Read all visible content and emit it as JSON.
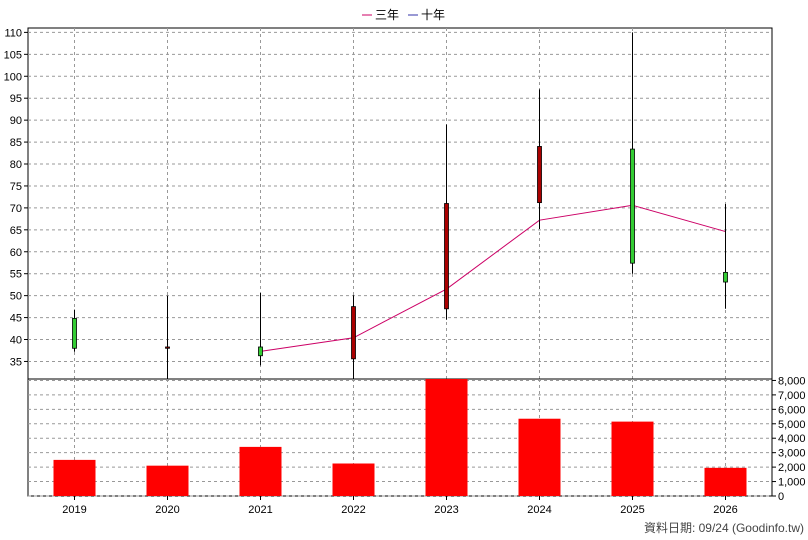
{
  "chart_data": [
    {
      "type": "candlestick",
      "legend": [
        {
          "name": "三年",
          "color": "#cc0066"
        },
        {
          "name": "十年",
          "color": "#3333aa"
        }
      ],
      "x": [
        "2019",
        "2020",
        "2021",
        "2022",
        "2023",
        "2024",
        "2025",
        "2026"
      ],
      "ylim": [
        31,
        111
      ],
      "yticks": [
        35,
        40,
        45,
        50,
        55,
        60,
        65,
        70,
        75,
        80,
        85,
        90,
        95,
        100,
        105,
        110
      ],
      "candles": [
        {
          "open": 38,
          "close": 44.8,
          "high": 46.8,
          "low": 37.2
        },
        {
          "open": 38.3,
          "close": 38.0,
          "high": 50,
          "low": 30.9
        },
        {
          "open": 36.3,
          "close": 38.3,
          "high": 50.6,
          "low": 34.1
        },
        {
          "open": 47.5,
          "close": 35.6,
          "high": 50.1,
          "low": 30.8
        },
        {
          "open": 71,
          "close": 47,
          "high": 89,
          "low": 44.5
        },
        {
          "open": 84,
          "close": 71.2,
          "high": 97,
          "low": 65.2
        },
        {
          "open": 57.4,
          "close": 83.4,
          "high": 110,
          "low": 55
        },
        {
          "open": 53.1,
          "close": 55.3,
          "high": 70.9,
          "low": 47
        }
      ],
      "series": [
        {
          "name": "三年",
          "x": [
            "2021",
            "2022",
            "2023",
            "2024",
            "2025",
            "2026"
          ],
          "values": [
            37.3,
            40.4,
            51.5,
            67.2,
            70.6,
            64.6
          ]
        }
      ],
      "grid": true
    },
    {
      "type": "bar",
      "categories": [
        "2019",
        "2020",
        "2021",
        "2022",
        "2023",
        "2024",
        "2025",
        "2026"
      ],
      "values": [
        2500,
        2100,
        3400,
        2250,
        8100,
        5350,
        5150,
        1950
      ],
      "ylim": [
        0,
        8100
      ],
      "yticks": [
        "0",
        "1,000",
        "2,000",
        "3,000",
        "4,000",
        "5,000",
        "6,000",
        "7,000",
        "8,000"
      ],
      "color": "#ff0000",
      "grid": true
    }
  ],
  "footer": "資料日期: 09/24  (Goodinfo.tw)"
}
